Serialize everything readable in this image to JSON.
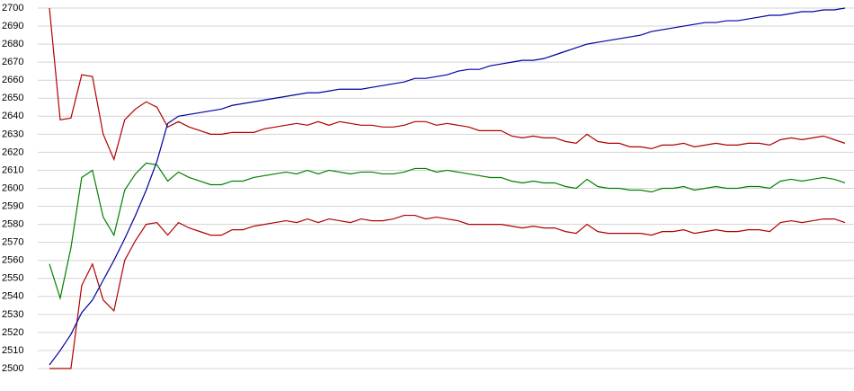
{
  "chart_data": {
    "type": "line",
    "categories": [
      null,
      null,
      null,
      null,
      null,
      null,
      null,
      null,
      null,
      null,
      null,
      null,
      null,
      null,
      null,
      null,
      null,
      null,
      null,
      null,
      null,
      null,
      null,
      null,
      null,
      null,
      null,
      null,
      null,
      null,
      null,
      null,
      null,
      null,
      null,
      null,
      null,
      null,
      null,
      null,
      null,
      null,
      null,
      null,
      null,
      null,
      null,
      null,
      null,
      null,
      null,
      null,
      null,
      null,
      null,
      null,
      null,
      null,
      null,
      null,
      null,
      null,
      null,
      null,
      null,
      null,
      null,
      null,
      null,
      null,
      null,
      null,
      null,
      null,
      null
    ],
    "series": [
      {
        "color": "#b00000",
        "values": [
          2700,
          2638,
          2639,
          2663,
          2662,
          2630,
          2616,
          2638,
          2644,
          2648,
          2645,
          2634,
          2637,
          2634,
          2632,
          2630,
          2630,
          2631,
          2631,
          2631,
          2633,
          2634,
          2635,
          2636,
          2635,
          2637,
          2635,
          2637,
          2636,
          2635,
          2635,
          2634,
          2634,
          2635,
          2637,
          2637,
          2635,
          2636,
          2635,
          2634,
          2632,
          2632,
          2632,
          2629,
          2628,
          2629,
          2628,
          2628,
          2626,
          2625,
          2630,
          2626,
          2625,
          2625,
          2623,
          2623,
          2622,
          2624,
          2624,
          2625,
          2623,
          2624,
          2625,
          2624,
          2624,
          2625,
          2625,
          2624,
          2627,
          2628,
          2627,
          2628,
          2629,
          2627,
          2625
        ]
      },
      {
        "color": "#008000",
        "values": [
          2558,
          2539,
          2567,
          2606,
          2610,
          2584,
          2574,
          2599,
          2608,
          2614,
          2613,
          2604,
          2609,
          2606,
          2604,
          2602,
          2602,
          2604,
          2604,
          2606,
          2607,
          2608,
          2609,
          2608,
          2610,
          2608,
          2610,
          2609,
          2608,
          2609,
          2609,
          2608,
          2608,
          2609,
          2611,
          2611,
          2609,
          2610,
          2609,
          2608,
          2607,
          2606,
          2606,
          2604,
          2603,
          2604,
          2603,
          2603,
          2601,
          2600,
          2605,
          2601,
          2600,
          2600,
          2599,
          2599,
          2598,
          2600,
          2600,
          2601,
          2599,
          2600,
          2601,
          2600,
          2600,
          2601,
          2601,
          2600,
          2604,
          2605,
          2604,
          2605,
          2606,
          2605,
          2603
        ]
      },
      {
        "color": "#b00000",
        "values": [
          2500,
          2500,
          2500,
          2546,
          2558,
          2538,
          2532,
          2560,
          2571,
          2580,
          2581,
          2574,
          2581,
          2578,
          2576,
          2574,
          2574,
          2577,
          2577,
          2579,
          2580,
          2581,
          2582,
          2581,
          2583,
          2581,
          2583,
          2582,
          2581,
          2583,
          2582,
          2582,
          2583,
          2585,
          2585,
          2583,
          2584,
          2583,
          2582,
          2580,
          2580,
          2580,
          2580,
          2579,
          2578,
          2579,
          2578,
          2578,
          2576,
          2575,
          2580,
          2576,
          2575,
          2575,
          2575,
          2575,
          2574,
          2576,
          2576,
          2577,
          2575,
          2576,
          2577,
          2576,
          2576,
          2577,
          2577,
          2576,
          2581,
          2582,
          2581,
          2582,
          2583,
          2583,
          2581
        ]
      },
      {
        "color": "#0000a0",
        "values": [
          2502,
          2510,
          2519,
          2531,
          2538,
          2549,
          2560,
          2572,
          2585,
          2599,
          2615,
          2636,
          2640,
          2641,
          2642,
          2643,
          2644,
          2646,
          2647,
          2648,
          2649,
          2650,
          2651,
          2652,
          2653,
          2653,
          2654,
          2655,
          2655,
          2655,
          2656,
          2657,
          2658,
          2659,
          2661,
          2661,
          2662,
          2663,
          2665,
          2666,
          2666,
          2668,
          2669,
          2670,
          2671,
          2671,
          2672,
          2674,
          2676,
          2678,
          2680,
          2681,
          2682,
          2683,
          2684,
          2685,
          2687,
          2688,
          2689,
          2690,
          2691,
          2692,
          2692,
          2693,
          2693,
          2694,
          2695,
          2696,
          2696,
          2697,
          2698,
          2698,
          2699,
          2699,
          2700
        ]
      }
    ],
    "ylim": [
      2500,
      2700
    ],
    "yticks": [
      2500,
      2510,
      2520,
      2530,
      2540,
      2550,
      2560,
      2570,
      2580,
      2590,
      2600,
      2610,
      2620,
      2630,
      2640,
      2650,
      2660,
      2670,
      2680,
      2690,
      2700
    ],
    "grid": true
  }
}
